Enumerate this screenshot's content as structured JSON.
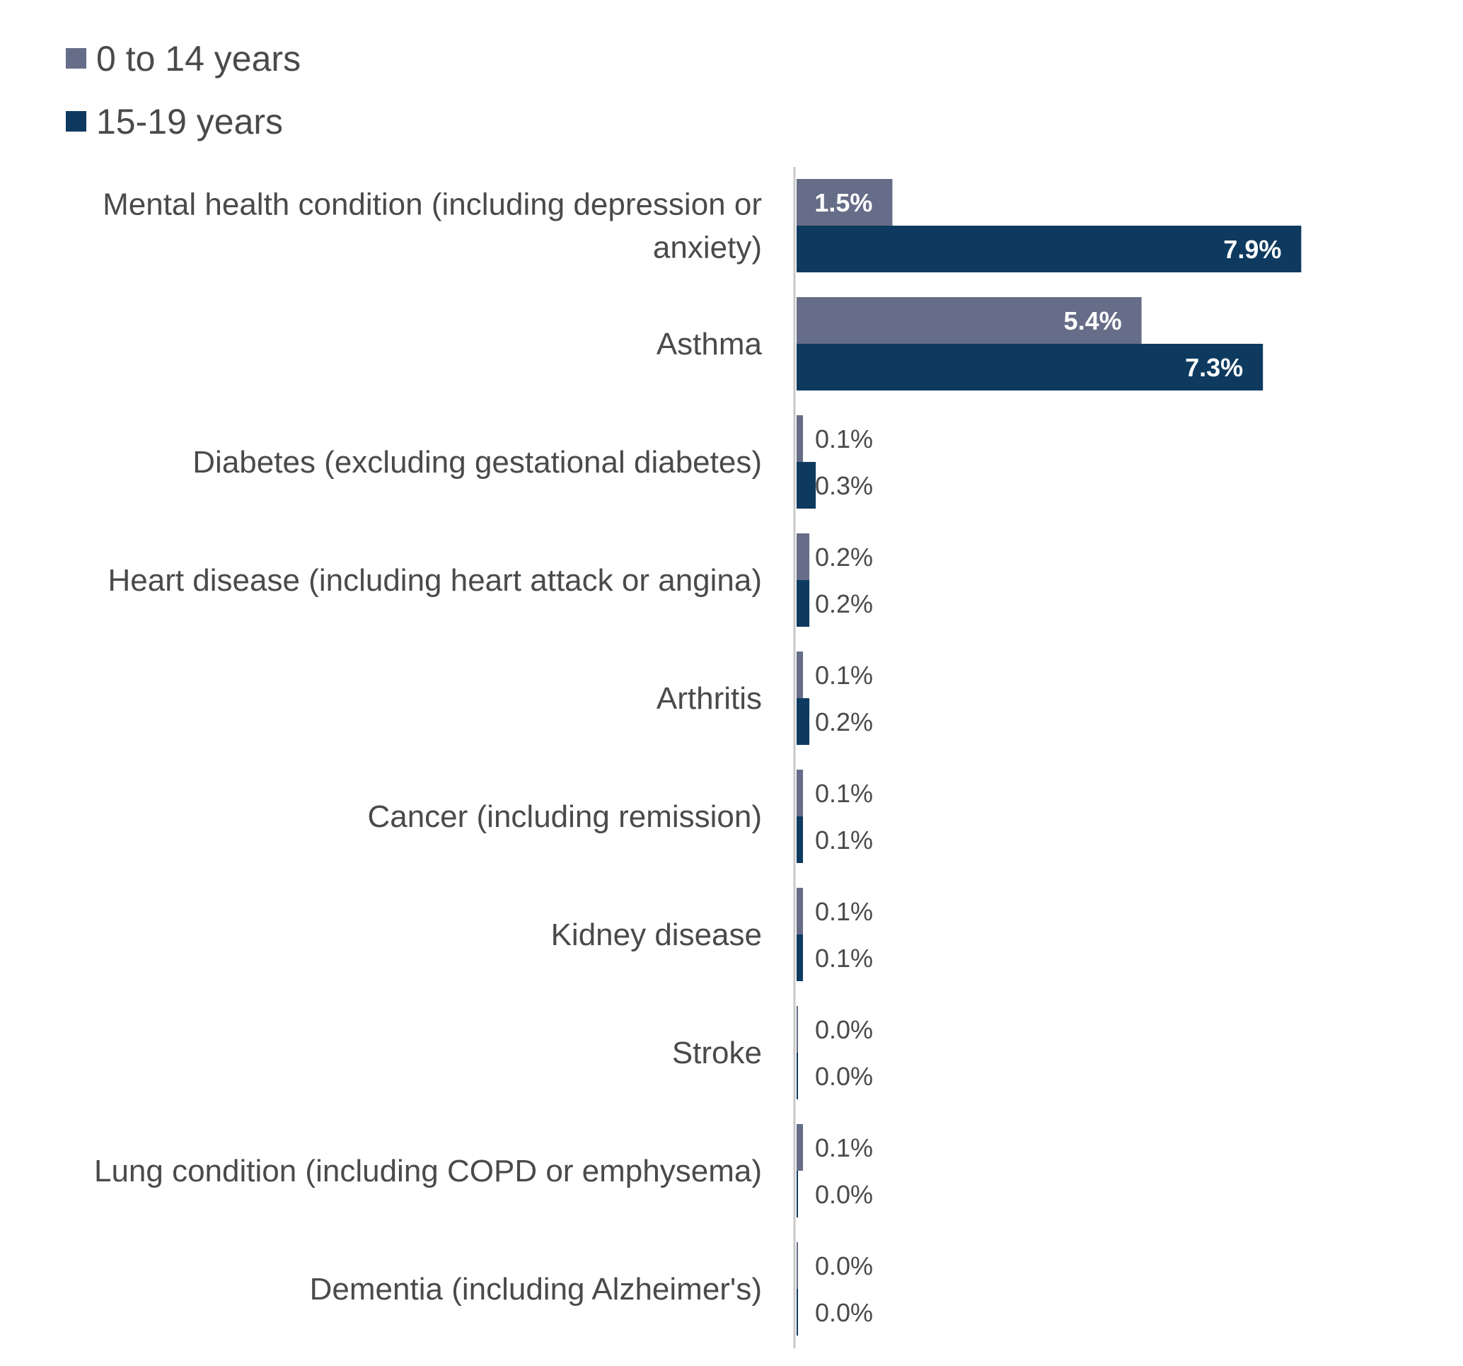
{
  "chart_data": {
    "type": "bar",
    "orientation": "horizontal",
    "categories": [
      "Mental health condition (including depression or anxiety)",
      "Asthma",
      "Diabetes (excluding gestational diabetes)",
      "Heart disease (including heart attack or angina)",
      "Arthritis",
      "Cancer (including remission)",
      "Kidney disease",
      "Stroke",
      "Lung condition (including COPD or emphysema)",
      "Dementia (including Alzheimer's)"
    ],
    "category_lines": [
      [
        "Mental health condition (including depression or",
        "anxiety)"
      ],
      [
        "Asthma"
      ],
      [
        "Diabetes (excluding gestational diabetes)"
      ],
      [
        "Heart disease (including heart attack or angina)"
      ],
      [
        "Arthritis"
      ],
      [
        "Cancer (including remission)"
      ],
      [
        "Kidney disease"
      ],
      [
        "Stroke"
      ],
      [
        "Lung condition (including COPD or emphysema)"
      ],
      [
        "Dementia (including Alzheimer's)"
      ]
    ],
    "series": [
      {
        "name": "0 to 14 years",
        "color": "#666d88",
        "values": [
          1.5,
          5.4,
          0.1,
          0.2,
          0.1,
          0.1,
          0.1,
          0.0,
          0.1,
          0.0
        ],
        "labels": [
          "1.5%",
          "5.4%",
          "0.1%",
          "0.2%",
          "0.1%",
          "0.1%",
          "0.1%",
          "0.0%",
          "0.1%",
          "0.0%"
        ]
      },
      {
        "name": "15-19 years",
        "color": "#0e3a5f",
        "values": [
          7.9,
          7.3,
          0.3,
          0.2,
          0.2,
          0.1,
          0.1,
          0.0,
          0.0,
          0.0
        ],
        "labels": [
          "7.9%",
          "7.3%",
          "0.3%",
          "0.2%",
          "0.2%",
          "0.1%",
          "0.1%",
          "0.0%",
          "0.0%",
          "0.0%"
        ]
      }
    ],
    "legend_position": "top-left",
    "grid": false,
    "xlim": [
      0,
      8.5
    ]
  }
}
